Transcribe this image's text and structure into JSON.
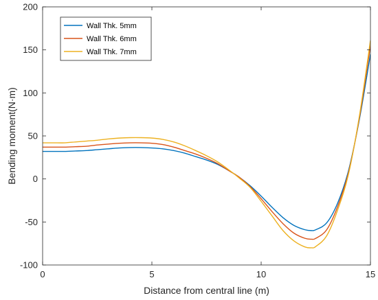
{
  "chart_data": {
    "type": "line",
    "xlabel": "Distance from central line (m)",
    "ylabel": "Bending moment(N·m)",
    "xlim": [
      0,
      15
    ],
    "ylim": [
      -100,
      200
    ],
    "x_ticks": [
      "0",
      "5",
      "10",
      "15"
    ],
    "y_ticks": [
      "-100",
      "-50",
      "0",
      "50",
      "100",
      "150",
      "200"
    ],
    "grid": false,
    "legend_position": "top-left",
    "x": [
      0,
      0.5,
      1,
      1.5,
      2,
      2.5,
      3,
      3.5,
      4,
      4.5,
      5,
      5.5,
      6,
      6.5,
      7,
      7.5,
      8,
      8.5,
      9,
      9.5,
      10,
      10.5,
      11,
      11.5,
      12,
      12.3,
      12.5,
      13,
      13.5,
      14,
      14.5,
      15
    ],
    "series": [
      {
        "name": "Wall Thk. 5mm",
        "color": "#0072BD",
        "values": [
          32,
          32,
          32,
          32.5,
          33,
          34,
          35,
          36,
          36.5,
          36.5,
          36,
          35,
          33,
          30,
          26,
          22,
          17,
          10,
          2,
          -8,
          -20,
          -33,
          -45,
          -54,
          -59,
          -60,
          -59,
          -51,
          -28,
          10,
          70,
          145
        ]
      },
      {
        "name": "Wall Thk. 6mm",
        "color": "#D95319",
        "values": [
          37,
          37,
          37,
          37.5,
          38,
          39.5,
          40.5,
          41.5,
          42,
          42,
          41.5,
          40,
          37,
          33,
          29,
          24,
          18,
          10,
          2,
          -9,
          -23,
          -38,
          -52,
          -63,
          -69,
          -70,
          -69,
          -59,
          -32,
          8,
          72,
          155
        ]
      },
      {
        "name": "Wall Thk. 7mm",
        "color": "#EDB120",
        "values": [
          42,
          42,
          42,
          43,
          44,
          45,
          46.5,
          47.5,
          48,
          48,
          47.5,
          46,
          43,
          38.5,
          33,
          27,
          20,
          11,
          1,
          -10,
          -26,
          -43,
          -60,
          -72,
          -79,
          -80,
          -78.5,
          -66,
          -36,
          6,
          74,
          161
        ]
      }
    ]
  }
}
